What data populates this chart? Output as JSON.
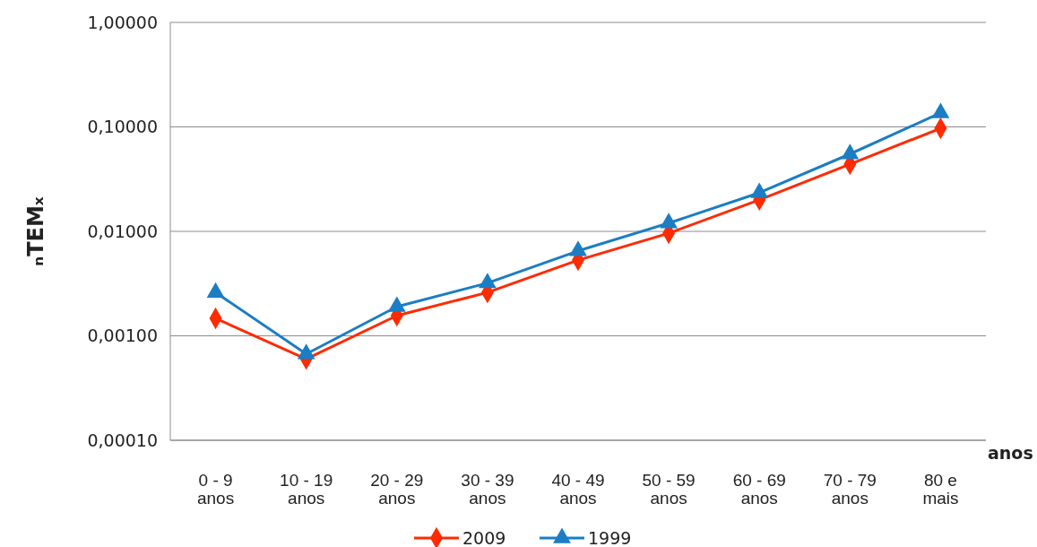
{
  "chart_data": {
    "type": "line",
    "ylabel": "ₙTEMₓ",
    "xlabel": "anos",
    "categories": [
      "0 - 9 anos",
      "10 - 19 anos",
      "20 - 29 anos",
      "30 - 39 anos",
      "40 - 49 anos",
      "50 - 59 anos",
      "60 - 69 anos",
      "70 - 79 anos",
      "80 e mais"
    ],
    "series": [
      {
        "name": "2009",
        "color": "#ff2a00",
        "marker": "diamond",
        "values": [
          0.00147,
          0.0006,
          0.00156,
          0.0026,
          0.0053,
          0.0096,
          0.02,
          0.044,
          0.097
        ]
      },
      {
        "name": "1999",
        "color": "#1b7dc4",
        "marker": "triangle",
        "values": [
          0.0026,
          0.00067,
          0.0019,
          0.0032,
          0.0065,
          0.012,
          0.0234,
          0.055,
          0.136
        ]
      }
    ],
    "log": "y",
    "ylim": [
      0.0001,
      1
    ],
    "yticks": [
      {
        "value": 0.0001,
        "label": "0,00010"
      },
      {
        "value": 0.001,
        "label": "0,00100"
      },
      {
        "value": 0.01,
        "label": "0,01000"
      },
      {
        "value": 0.1,
        "label": "0,10000"
      },
      {
        "value": 1,
        "label": "1,00000"
      }
    ],
    "grid": "y",
    "legend": "bottom"
  }
}
